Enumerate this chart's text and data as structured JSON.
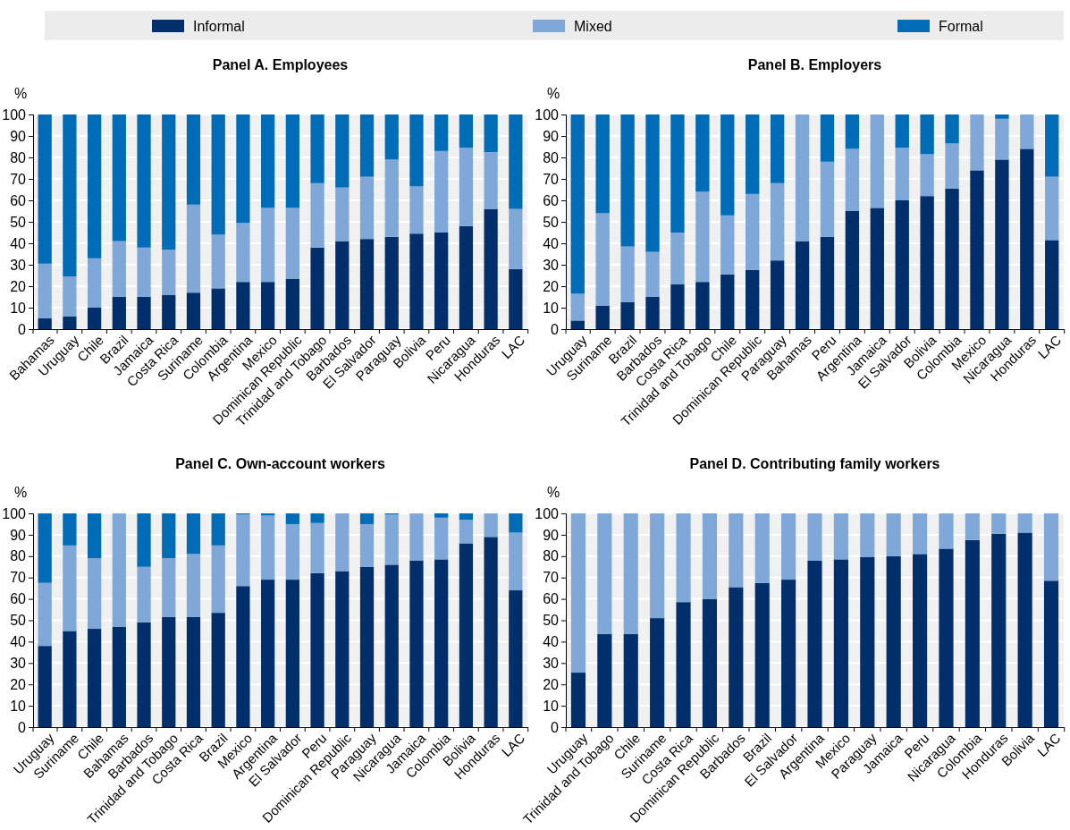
{
  "chart_data": [
    {
      "type": "bar",
      "stacked": true,
      "title": "Panel A. Employees",
      "ylabel": "%",
      "legend": "top",
      "grid": "y",
      "ylim": [
        0,
        100
      ],
      "yticks": [
        0,
        10,
        20,
        30,
        40,
        50,
        60,
        70,
        80,
        90,
        100
      ],
      "categories": [
        "Bahamas",
        "Uruguay",
        "Chile",
        "Brazil",
        "Jamaica",
        "Costa Rica",
        "Suriname",
        "Colombia",
        "Argentina",
        "Mexico",
        "Dominican Republic",
        "Trinidad and Tobago",
        "Barbados",
        "El Salvador",
        "Paraguay",
        "Bolivia",
        "Peru",
        "Nicaragua",
        "Honduras",
        "LAC"
      ],
      "series": [
        {
          "name": "Informal",
          "color": "#002f6c",
          "values": [
            5,
            6,
            10,
            15,
            15,
            16,
            17,
            19,
            22,
            22,
            23.5,
            38,
            41,
            42,
            43,
            44.5,
            45,
            48,
            56,
            28
          ]
        },
        {
          "name": "Mixed",
          "color": "#7fa8d9",
          "values": [
            25.5,
            18.5,
            23,
            26,
            23,
            21,
            41,
            25,
            27.5,
            34.5,
            33,
            30,
            25,
            29,
            36,
            22,
            38,
            36.5,
            26.5,
            28
          ]
        },
        {
          "name": "Formal",
          "color": "#006bb6",
          "values": [
            69.5,
            75.5,
            67,
            59,
            62,
            63,
            42,
            56,
            50.5,
            43.5,
            43.5,
            32,
            34,
            29,
            21,
            33.5,
            17,
            15.5,
            17.5,
            44
          ]
        }
      ]
    },
    {
      "type": "bar",
      "stacked": true,
      "title": "Panel B. Employers",
      "ylabel": "%",
      "grid": "y",
      "ylim": [
        0,
        100
      ],
      "yticks": [
        0,
        10,
        20,
        30,
        40,
        50,
        60,
        70,
        80,
        90,
        100
      ],
      "categories": [
        "Uruguay",
        "Suriname",
        "Brazil",
        "Barbados",
        "Costa Rica",
        "Trinidad and Tobago",
        "Chile",
        "Dominican Republic",
        "Paraguay",
        "Bahamas",
        "Peru",
        "Argentina",
        "Jamaica",
        "El Salvador",
        "Bolivia",
        "Colombia",
        "Mexico",
        "Nicaragua",
        "Honduras",
        "LAC"
      ],
      "series": [
        {
          "color": "#002f6c",
          "values": [
            4,
            11,
            12.5,
            15,
            21,
            22,
            25.5,
            27.5,
            32,
            41,
            43,
            55,
            56.5,
            60,
            62,
            65.5,
            74,
            79,
            84,
            41.5
          ]
        },
        {
          "color": "#7fa8d9",
          "values": [
            12.5,
            43,
            26,
            21,
            24,
            42,
            27.5,
            35.5,
            36,
            59,
            35,
            29,
            43.5,
            24.5,
            19.5,
            21,
            26,
            19,
            16,
            29.5
          ]
        },
        {
          "color": "#006bb6",
          "values": [
            83.5,
            46,
            61.5,
            64,
            55,
            36,
            47,
            37,
            32,
            0,
            22,
            16,
            0,
            15.5,
            18.5,
            13.5,
            0,
            2,
            0,
            29
          ]
        }
      ]
    },
    {
      "type": "bar",
      "stacked": true,
      "title": "Panel C. Own-account workers",
      "ylabel": "%",
      "grid": "y",
      "ylim": [
        0,
        100
      ],
      "yticks": [
        0,
        10,
        20,
        30,
        40,
        50,
        60,
        70,
        80,
        90,
        100
      ],
      "categories": [
        "Uruguay",
        "Suriname",
        "Chile",
        "Bahamas",
        "Barbados",
        "Trinidad and Tobago",
        "Costa Rica",
        "Brazil",
        "Mexico",
        "Argentina",
        "El Salvador",
        "Peru",
        "Dominican Republic",
        "Paraguay",
        "Nicaragua",
        "Jamaica",
        "Colombia",
        "Bolivia",
        "Honduras",
        "LAC"
      ],
      "series": [
        {
          "color": "#002f6c",
          "values": [
            38,
            45,
            46,
            47,
            49,
            51.5,
            51.5,
            53.5,
            66,
            69,
            69,
            72,
            73,
            75,
            76,
            78,
            78.5,
            86,
            89,
            64
          ]
        },
        {
          "color": "#7fa8d9",
          "values": [
            29.5,
            40,
            33,
            53,
            26,
            27.5,
            29.5,
            31.5,
            33.5,
            30,
            26,
            23.5,
            27,
            20,
            23.5,
            22,
            19.5,
            11,
            11,
            27
          ]
        },
        {
          "color": "#006bb6",
          "values": [
            32.5,
            15,
            21,
            0,
            25,
            21,
            19,
            15,
            0.5,
            1,
            5,
            4.5,
            0,
            5,
            0.5,
            0,
            2,
            3,
            0,
            9
          ]
        }
      ]
    },
    {
      "type": "bar",
      "stacked": true,
      "title": "Panel D. Contributing family workers",
      "ylabel": "%",
      "grid": "y",
      "ylim": [
        0,
        100
      ],
      "yticks": [
        0,
        10,
        20,
        30,
        40,
        50,
        60,
        70,
        80,
        90,
        100
      ],
      "categories": [
        "Uruguay",
        "Trinidad and Tobago",
        "Chile",
        "Suriname",
        "Costa Rica",
        "Dominican Republic",
        "Barbados",
        "Brazil",
        "El Salvador",
        "Argentina",
        "Mexico",
        "Paraguay",
        "Jamaica",
        "Peru",
        "Nicaragua",
        "Colombia",
        "Honduras",
        "Bolivia",
        "LAC"
      ],
      "series": [
        {
          "color": "#002f6c",
          "values": [
            25.5,
            43.5,
            43.5,
            51,
            58.5,
            60,
            65.5,
            67.5,
            69,
            78,
            78.5,
            79.5,
            80,
            81,
            83.5,
            87.5,
            90.5,
            91,
            68.5
          ]
        },
        {
          "color": "#7fa8d9",
          "values": [
            74.5,
            56.5,
            56.5,
            49,
            41.5,
            40,
            34.5,
            32.5,
            31,
            22,
            21.5,
            20.5,
            20,
            19,
            16.5,
            12.5,
            9.5,
            9,
            31.5
          ]
        }
      ]
    }
  ]
}
